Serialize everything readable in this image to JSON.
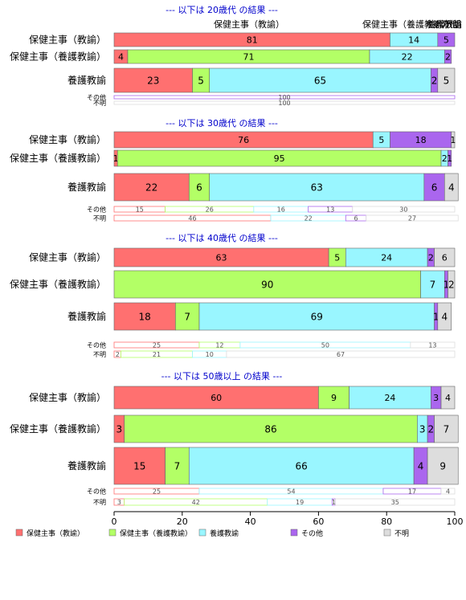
{
  "chart_data": {
    "type": "bar",
    "orientation": "horizontal-stacked-percent",
    "xlim": [
      0,
      100
    ],
    "x_ticks": [
      "0",
      "20",
      "40",
      "60",
      "80",
      "100"
    ],
    "series_names": [
      "保健主事（教諭）",
      "保健主事（養護教諭）",
      "養護教諭",
      "その他",
      "不明"
    ],
    "colors": [
      "#ff7070",
      "#b3ff66",
      "#99f6ff",
      "#aa66ee",
      "#dddddd"
    ],
    "top_header_labels": [
      "保健主事（教諭）",
      "保健主事（養護教諭）",
      "養護教諭",
      "その他",
      "不明"
    ],
    "panels": [
      {
        "title": "--- 以下は 20歳代 の結果 ---",
        "rows": [
          {
            "label": "保健主事（教諭）",
            "values": [
              81,
              0,
              14,
              5,
              0
            ]
          },
          {
            "label": "保健主事（養護教諭）",
            "values": [
              4,
              71,
              22,
              2,
              0
            ]
          },
          {
            "label": "養護教諭",
            "values": [
              23,
              5,
              65,
              2,
              5
            ]
          },
          {
            "label": "その他",
            "values": [
              0,
              0,
              0,
              100,
              0
            ]
          },
          {
            "label": "不明",
            "values": [
              0,
              0,
              0,
              0,
              100
            ]
          }
        ]
      },
      {
        "title": "--- 以下は 30歳代 の結果 ---",
        "rows": [
          {
            "label": "保健主事（教諭）",
            "values": [
              76,
              0,
              5,
              18,
              1
            ]
          },
          {
            "label": "保健主事（養護教諭）",
            "values": [
              1,
              95,
              2,
              1,
              0
            ]
          },
          {
            "label": "養護教諭",
            "values": [
              22,
              6,
              63,
              6,
              4
            ]
          },
          {
            "label": "その他",
            "values": [
              15,
              26,
              16,
              13,
              30
            ]
          },
          {
            "label": "不明",
            "values": [
              46,
              0,
              22,
              6,
              27
            ]
          }
        ]
      },
      {
        "title": "--- 以下は 40歳代 の結果 ---",
        "rows": [
          {
            "label": "保健主事（教諭）",
            "values": [
              63,
              5,
              24,
              2,
              6
            ]
          },
          {
            "label": "保健主事（養護教諭）",
            "values": [
              0,
              90,
              7,
              1,
              2
            ]
          },
          {
            "label": "養護教諭",
            "values": [
              18,
              7,
              69,
              1,
              4
            ]
          },
          {
            "label": "その他",
            "values": [
              25,
              12,
              50,
              0,
              13
            ]
          },
          {
            "label": "不明",
            "values": [
              2,
              21,
              10,
              0,
              67
            ]
          }
        ]
      },
      {
        "title": "--- 以下は 50歳以上 の結果 ---",
        "rows": [
          {
            "label": "保健主事（教諭）",
            "values": [
              60,
              9,
              24,
              3,
              4
            ]
          },
          {
            "label": "保健主事（養護教諭）",
            "values": [
              3,
              86,
              3,
              2,
              7
            ]
          },
          {
            "label": "養護教諭",
            "values": [
              15,
              7,
              66,
              4,
              9
            ]
          },
          {
            "label": "その他",
            "values": [
              25,
              0,
              54,
              17,
              4
            ]
          },
          {
            "label": "不明",
            "values": [
              3,
              42,
              19,
              1,
              35
            ]
          }
        ]
      }
    ],
    "legend": {
      "placement": "bottom",
      "entries": [
        "保健主事（教諭）",
        "保健主事（養護教諭）",
        "養護教諭",
        "その他",
        "不明"
      ]
    }
  }
}
